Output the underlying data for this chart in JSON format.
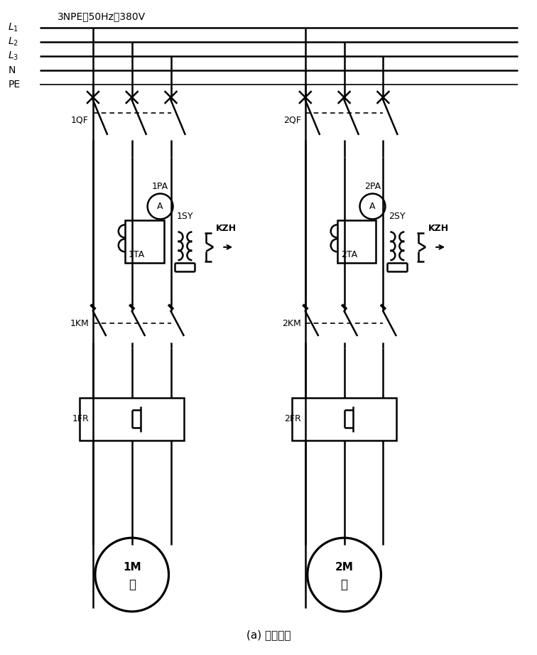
{
  "title": "(a) 一次电路",
  "bus_label": "3NPE～50Hz、380V",
  "bus_lines": [
    "L₁",
    "L₂",
    "L₃",
    "N",
    "PE"
  ],
  "bg": "#ffffff",
  "lw": 1.8,
  "lw_thin": 1.2
}
